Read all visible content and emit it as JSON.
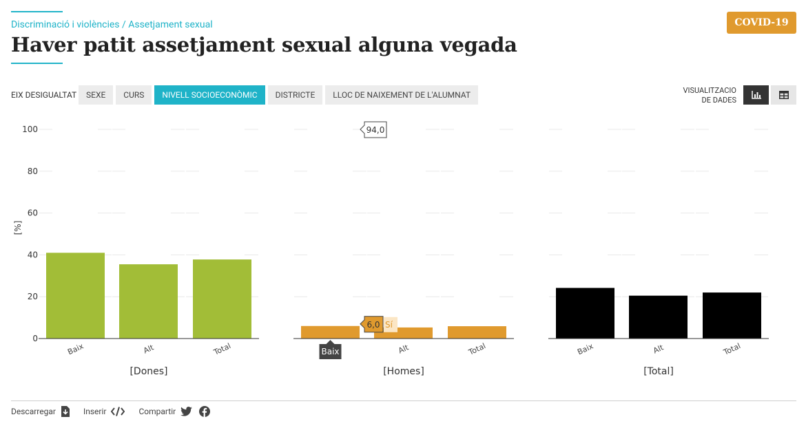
{
  "breadcrumb": "Discriminació i violències / Assetjament sexual",
  "title": "Haver patit assetjament sexual alguna vegada",
  "badge": "COVID-19",
  "toolbar": {
    "eix_label": "EIX DESIGUALTAT",
    "tabs": [
      "SEXE",
      "CURS",
      "NIVELL SOCIOECONÒMIC",
      "DISTRICTE",
      "LLOC DE NAIXEMENT DE L'ALUMNAT"
    ],
    "active_tab": 2,
    "viz_label_1": "VISUALITZACIO",
    "viz_label_2": "DE DADES",
    "viz_chart_icon": "bar-chart-icon",
    "viz_table_icon": "table-icon"
  },
  "footer": {
    "download": "Descarregar",
    "embed": "Inserir",
    "share": "Compartir"
  },
  "chart_data": {
    "type": "bar",
    "ylabel": "[%]",
    "ylim": [
      0,
      100
    ],
    "yticks": [
      0,
      20,
      40,
      60,
      80,
      100
    ],
    "grid": true,
    "categories": [
      "Baix",
      "Alt",
      "Total"
    ],
    "panels": [
      {
        "name": "[Dones]",
        "color": "#a2bd37",
        "values": [
          41,
          35.5,
          37.8
        ]
      },
      {
        "name": "[Homes]",
        "color": "#e09a2e",
        "values": [
          6,
          5.3,
          5.9
        ]
      },
      {
        "name": "[Total]",
        "color": "#000000",
        "values": [
          24.2,
          20.5,
          22
        ]
      }
    ],
    "hover": {
      "category": "Baix",
      "panel": "[Homes]",
      "si_value": "6,0",
      "si_label": "Sí",
      "no_value": "94,0"
    }
  }
}
